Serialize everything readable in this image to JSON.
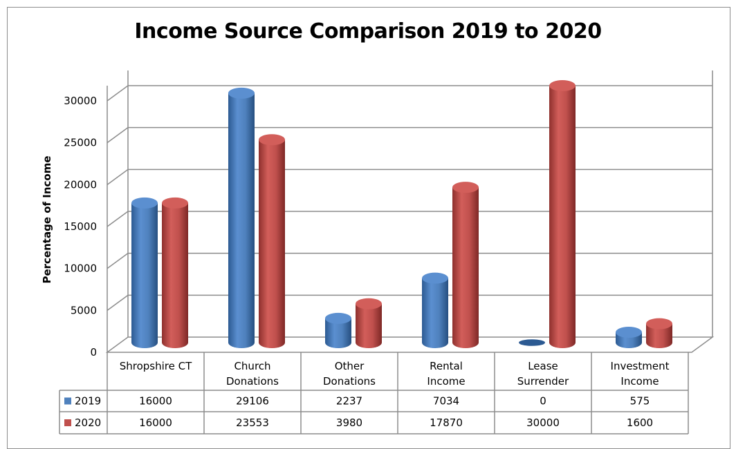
{
  "chart_data": {
    "type": "bar",
    "title": "Income Source Comparison 2019 to 2020",
    "ylabel": "Percentage of Income",
    "xlabel": "",
    "ylim": [
      0,
      30000
    ],
    "yticks": [
      "0",
      "5000",
      "10000",
      "15000",
      "20000",
      "25000",
      "30000"
    ],
    "grid": true,
    "legend": "data-table",
    "categories": [
      [
        "Shropshire CT"
      ],
      [
        "Church",
        "Donations"
      ],
      [
        "Other",
        "Donations"
      ],
      [
        "Rental",
        "Income"
      ],
      [
        "Lease",
        "Surrender"
      ],
      [
        "Investment",
        "Income"
      ]
    ],
    "series": [
      {
        "name": "2019",
        "color": "#4f81bd",
        "values": [
          16000,
          29106,
          2237,
          7034,
          0,
          575
        ],
        "labels": [
          "16000",
          "29106",
          "2237",
          "7034",
          "0",
          "575"
        ]
      },
      {
        "name": "2020",
        "color": "#c0504d",
        "values": [
          16000,
          23553,
          3980,
          17870,
          30000,
          1600
        ],
        "labels": [
          "16000",
          "23553",
          "3980",
          "17870",
          "30000",
          "1600"
        ]
      }
    ]
  }
}
